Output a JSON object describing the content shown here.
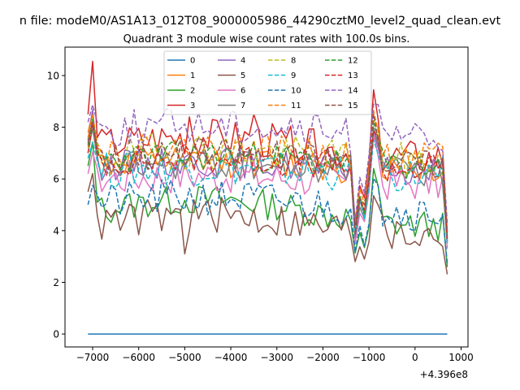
{
  "chart_data": {
    "type": "line",
    "suptitle": "n file: modeM0/AS1A13_012T08_9000005986_44290cztM0_level2_quad_clean.evt",
    "title": "Quadrant 3 module wise count rates with 100.0s bins.",
    "xlabel": "",
    "ylabel": "",
    "x_offset_label": "+4.396e8",
    "xlim": [
      -7600,
      1150
    ],
    "ylim": [
      -0.5,
      11.1
    ],
    "xticks": [
      -7000,
      -6000,
      -5000,
      -4000,
      -3000,
      -2000,
      -1000,
      0,
      1000
    ],
    "xtick_labels": [
      "−7000",
      "−6000",
      "−5000",
      "−4000",
      "−3000",
      "−2000",
      "−1000",
      "0",
      "1000"
    ],
    "yticks": [
      0,
      2,
      4,
      6,
      8,
      10
    ],
    "ytick_labels": [
      "0",
      "2",
      "4",
      "6",
      "8",
      "10"
    ],
    "grid": false,
    "legend": {
      "placement": "upper-center",
      "columns": 4
    },
    "x_start": -7100,
    "x_step": 100,
    "n_points": 79,
    "series": [
      {
        "name": "0",
        "color": "#1f77b4",
        "dash": false,
        "gen": {
          "base": 0,
          "amp": 0,
          "mod": 0,
          "seed": 0,
          "p0": 0,
          "end": 0
        }
      },
      {
        "name": "1",
        "color": "#ff7f0e",
        "dash": false,
        "gen": {
          "base": 6.5,
          "amp": 0.25,
          "mod": 0.15,
          "seed": 11,
          "p0": 7.8,
          "end": 0.8
        }
      },
      {
        "name": "2",
        "color": "#2ca02c",
        "dash": false,
        "gen": {
          "base": 4.7,
          "amp": 0.25,
          "mod": 0.5,
          "seed": 12,
          "p0": 6.5,
          "end": 0.7
        }
      },
      {
        "name": "3",
        "color": "#d62728",
        "dash": false,
        "gen": {
          "base": 7.2,
          "amp": 0.3,
          "mod": 0.4,
          "seed": 13,
          "p0": 8.5,
          "end": 1.0
        }
      },
      {
        "name": "4",
        "color": "#9467bd",
        "dash": false,
        "gen": {
          "base": 6.5,
          "amp": 0.25,
          "mod": 0.15,
          "seed": 14,
          "p0": 7.5,
          "end": 0.8
        }
      },
      {
        "name": "5",
        "color": "#8c564b",
        "dash": false,
        "gen": {
          "base": 4.2,
          "amp": 0.3,
          "mod": 0.4,
          "seed": 15,
          "p0": 5.5,
          "end": 0.6
        }
      },
      {
        "name": "6",
        "color": "#e377c2",
        "dash": false,
        "gen": {
          "base": 6.0,
          "amp": 0.3,
          "mod": 0.15,
          "seed": 16,
          "p0": 6.2,
          "end": 0.8
        }
      },
      {
        "name": "7",
        "color": "#7f7f7f",
        "dash": false,
        "gen": {
          "base": 6.4,
          "amp": 0.25,
          "mod": 0.15,
          "seed": 17,
          "p0": 7.0,
          "end": 0.8
        }
      },
      {
        "name": "8",
        "color": "#bcbd22",
        "dash": true,
        "gen": {
          "base": 6.9,
          "amp": 0.3,
          "mod": 0.2,
          "seed": 18,
          "p0": 7.2,
          "end": 0.9
        }
      },
      {
        "name": "9",
        "color": "#17becf",
        "dash": true,
        "gen": {
          "base": 6.3,
          "amp": 0.3,
          "mod": 0.15,
          "seed": 19,
          "p0": 6.8,
          "end": 0.8
        }
      },
      {
        "name": "10",
        "color": "#1f77b4",
        "dash": true,
        "gen": {
          "base": 5.0,
          "amp": 0.3,
          "mod": 0.3,
          "seed": 20,
          "p0": 5.0,
          "end": 0.7
        }
      },
      {
        "name": "11",
        "color": "#ff7f0e",
        "dash": true,
        "gen": {
          "base": 7.0,
          "amp": 0.25,
          "mod": 0.2,
          "seed": 21,
          "p0": 7.6,
          "end": 0.9
        }
      },
      {
        "name": "12",
        "color": "#2ca02c",
        "dash": true,
        "gen": {
          "base": 6.7,
          "amp": 0.25,
          "mod": 0.2,
          "seed": 22,
          "p0": 7.3,
          "end": 0.8
        }
      },
      {
        "name": "13",
        "color": "#d62728",
        "dash": true,
        "gen": {
          "base": 6.6,
          "amp": 0.25,
          "mod": 0.2,
          "seed": 23,
          "p0": 7.0,
          "end": 0.8
        }
      },
      {
        "name": "14",
        "color": "#9467bd",
        "dash": true,
        "gen": {
          "base": 7.8,
          "amp": 0.3,
          "mod": 0.3,
          "seed": 24,
          "p0": 8.2,
          "end": 1.0
        }
      },
      {
        "name": "15",
        "color": "#8c564b",
        "dash": true,
        "gen": {
          "base": 6.8,
          "amp": 0.25,
          "mod": 0.2,
          "seed": 25,
          "p0": 7.4,
          "end": 0.9
        }
      }
    ]
  }
}
